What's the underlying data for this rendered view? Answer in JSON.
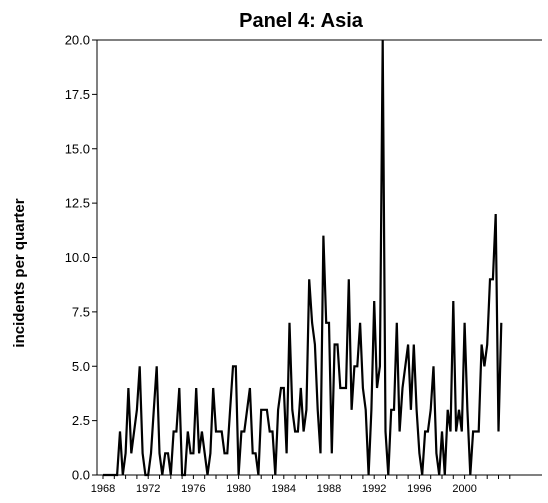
{
  "chart_data": {
    "type": "line",
    "title": "Panel 4: Asia",
    "xlabel": "",
    "ylabel": "incidents per quarter",
    "xlim": [
      1968,
      2004
    ],
    "ylim": [
      0,
      20
    ],
    "yticks": [
      "0.0",
      "2.5",
      "5.0",
      "7.5",
      "10.0",
      "12.5",
      "15.0",
      "17.5",
      "20.0"
    ],
    "xticks": [
      "1968",
      "1972",
      "1976",
      "1980",
      "1984",
      "1988",
      "1992",
      "1996",
      "2000"
    ],
    "grid": false,
    "series": [
      {
        "x_start": 1968,
        "step": 0.25,
        "values": [
          0,
          0,
          0,
          0,
          0,
          0,
          2,
          0,
          1,
          4,
          1,
          2,
          3,
          5,
          1,
          0,
          0,
          1,
          3,
          5,
          1,
          0,
          1,
          1,
          0,
          2,
          2,
          4,
          0,
          0,
          2,
          1,
          1,
          4,
          1,
          2,
          1,
          0,
          1,
          4,
          2,
          2,
          2,
          1,
          1,
          3,
          5,
          5,
          0,
          2,
          2,
          3,
          4,
          1,
          1,
          0,
          3,
          3,
          3,
          2,
          2,
          0,
          3,
          4,
          4,
          1,
          7,
          3,
          2,
          2,
          4,
          2,
          3,
          9,
          7,
          6,
          3,
          1,
          11,
          7,
          7,
          1,
          6,
          6,
          4,
          4,
          4,
          9,
          3,
          5,
          5,
          7,
          4,
          3,
          0,
          3,
          8,
          4,
          5,
          20,
          2,
          0,
          3,
          3,
          7,
          2,
          4,
          5,
          6,
          3,
          6,
          3,
          1,
          0,
          2,
          2,
          3,
          5,
          1,
          0,
          2,
          0,
          3,
          2,
          8,
          2,
          3,
          2,
          7,
          3,
          0,
          2,
          2,
          2,
          6,
          5,
          6,
          9,
          9,
          12,
          2,
          7
        ]
      }
    ]
  }
}
